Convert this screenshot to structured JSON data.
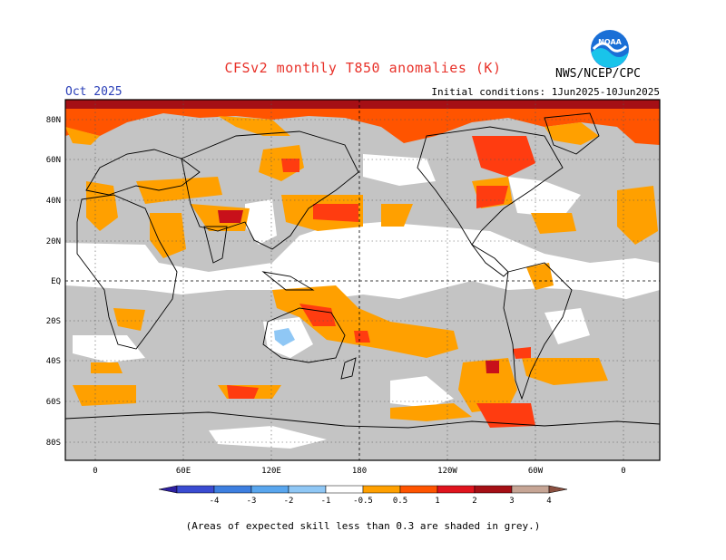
{
  "header": {
    "title": "CFSv2 monthly T850 anomalies (K)",
    "month": "Oct 2025",
    "initial_conditions": "Initial conditions: 1Jun2025-10Jun2025",
    "agency": "NWS/NCEP/CPC",
    "logo_text": "NOAA"
  },
  "map": {
    "lat_labels": [
      "80N",
      "60N",
      "40N",
      "20N",
      "EQ",
      "20S",
      "40S",
      "60S",
      "80S"
    ],
    "lon_labels": [
      "0",
      "60E",
      "120E",
      "180",
      "120W",
      "60W",
      "0"
    ],
    "colors": {
      "frame": "#000000",
      "grey_low_skill": "#c4c4c4",
      "ocean_white": "#ffffff"
    }
  },
  "colorbar": {
    "ticks": [
      "-4",
      "-3",
      "-2",
      "-1",
      "-0.5",
      "0.5",
      "1",
      "2",
      "3",
      "4"
    ],
    "colors": [
      "#2d1fa0",
      "#3a4bd1",
      "#3d7fe0",
      "#59a6ee",
      "#8fc7f5",
      "#ffffff",
      "#ffa000",
      "#ff5400",
      "#e0141e",
      "#a50f15",
      "#c6a595",
      "#8b5040"
    ]
  },
  "footnote": "(Areas of expected skill less than 0.3 are shaded in grey.)"
}
